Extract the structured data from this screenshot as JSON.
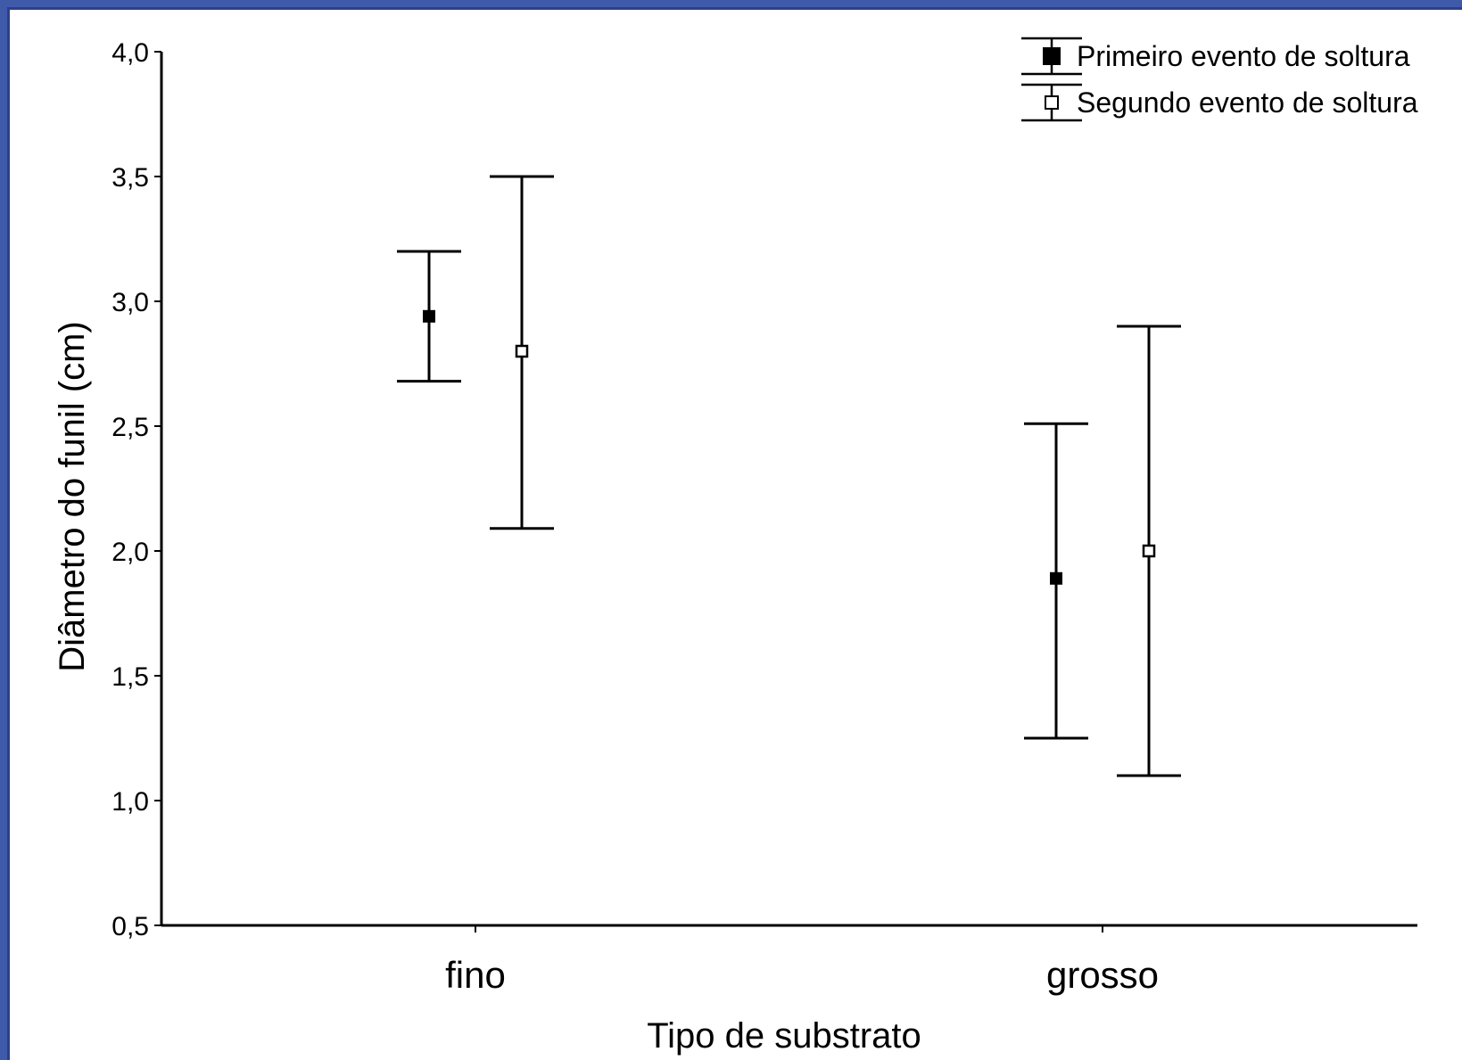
{
  "chart_data": {
    "type": "errorbar",
    "xlabel": "Tipo de substrato",
    "ylabel": "Diâmetro do funil (cm)",
    "ylim": [
      0.5,
      4.0
    ],
    "yticks": [
      "0,5",
      "1,0",
      "1,5",
      "2,0",
      "2,5",
      "3,0",
      "3,5",
      "4,0"
    ],
    "categories": [
      "fino",
      "grosso"
    ],
    "grid": false,
    "legend_position": "top-right",
    "series": [
      {
        "name": "Primeiro evento de soltura",
        "marker": "filled-square",
        "mean": [
          2.94,
          1.89
        ],
        "lower": [
          2.68,
          1.25
        ],
        "upper": [
          3.2,
          2.51
        ]
      },
      {
        "name": "Segundo evento de soltura",
        "marker": "open-square",
        "mean": [
          2.8,
          2.0
        ],
        "lower": [
          2.09,
          1.1
        ],
        "upper": [
          3.5,
          2.9
        ]
      }
    ]
  }
}
